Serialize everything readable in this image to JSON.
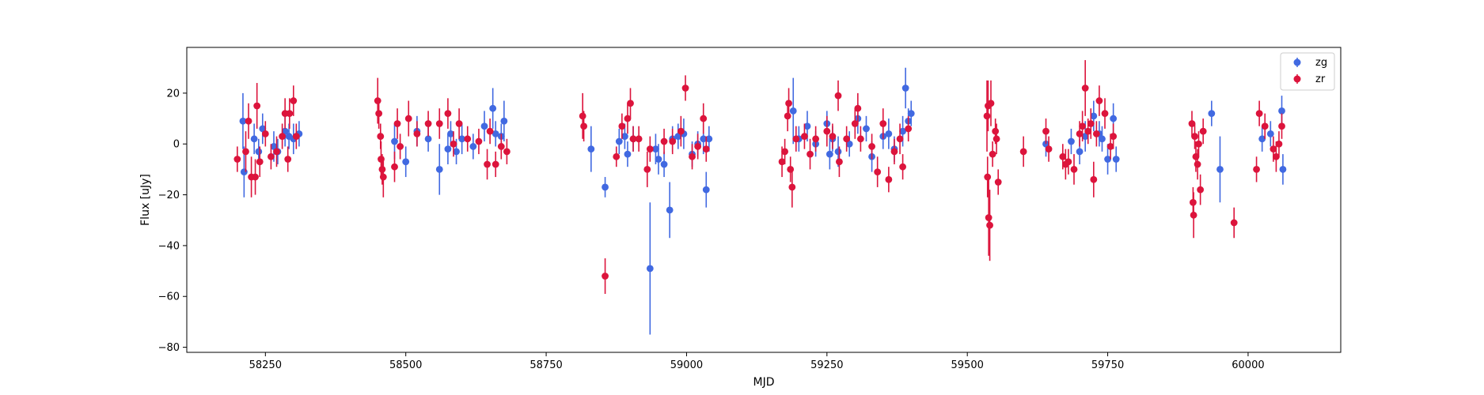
{
  "chart_data": {
    "type": "scatter",
    "xlabel": "MJD",
    "ylabel": "Flux [uJy]",
    "xlim": [
      58110,
      60165
    ],
    "ylim": [
      -82,
      38
    ],
    "xticks": [
      58250,
      58500,
      58750,
      59000,
      59250,
      59500,
      59750,
      60000
    ],
    "yticks": [
      20,
      0,
      -20,
      -40,
      -60,
      -80
    ],
    "legend_placement": "top-right",
    "grid": false,
    "series": [
      {
        "name": "zg",
        "color": "#4169e1",
        "points": [
          [
            58210,
            9,
            11
          ],
          [
            58212,
            -11,
            10
          ],
          [
            58230,
            2,
            6
          ],
          [
            58238,
            -3,
            5
          ],
          [
            58245,
            6,
            6
          ],
          [
            58265,
            -1,
            6
          ],
          [
            58272,
            -3,
            5
          ],
          [
            58285,
            5,
            6
          ],
          [
            58292,
            3,
            5
          ],
          [
            58300,
            2,
            6
          ],
          [
            58310,
            4,
            5
          ],
          [
            58480,
            1,
            7
          ],
          [
            58500,
            -7,
            6
          ],
          [
            58520,
            5,
            6
          ],
          [
            58540,
            2,
            5
          ],
          [
            58560,
            -10,
            10
          ],
          [
            58575,
            -2,
            6
          ],
          [
            58580,
            4,
            5
          ],
          [
            58590,
            -3,
            5
          ],
          [
            58600,
            2,
            6
          ],
          [
            58620,
            -1,
            5
          ],
          [
            58640,
            7,
            6
          ],
          [
            58655,
            14,
            8
          ],
          [
            58660,
            4,
            5
          ],
          [
            58670,
            3,
            5
          ],
          [
            58675,
            9,
            8
          ],
          [
            58830,
            -2,
            9
          ],
          [
            58855,
            -17,
            4
          ],
          [
            58880,
            1,
            5
          ],
          [
            58890,
            3,
            5
          ],
          [
            58895,
            -4,
            5
          ],
          [
            58905,
            2,
            5
          ],
          [
            58935,
            -49,
            26
          ],
          [
            58945,
            -2,
            6
          ],
          [
            58950,
            -6,
            6
          ],
          [
            58960,
            -8,
            5
          ],
          [
            58970,
            -26,
            11
          ],
          [
            58975,
            2,
            5
          ],
          [
            58985,
            3,
            5
          ],
          [
            58995,
            4,
            6
          ],
          [
            59010,
            -4,
            5
          ],
          [
            59020,
            0,
            5
          ],
          [
            59030,
            2,
            6
          ],
          [
            59035,
            -18,
            7
          ],
          [
            59040,
            2,
            5
          ],
          [
            59190,
            13,
            13
          ],
          [
            59200,
            2,
            5
          ],
          [
            59215,
            7,
            6
          ],
          [
            59230,
            0,
            5
          ],
          [
            59250,
            8,
            5
          ],
          [
            59255,
            -4,
            6
          ],
          [
            59260,
            2,
            5
          ],
          [
            59270,
            -3,
            6
          ],
          [
            59290,
            0,
            5
          ],
          [
            59305,
            10,
            6
          ],
          [
            59320,
            6,
            5
          ],
          [
            59330,
            -5,
            6
          ],
          [
            59350,
            3,
            5
          ],
          [
            59360,
            4,
            6
          ],
          [
            59370,
            -2,
            5
          ],
          [
            59385,
            5,
            6
          ],
          [
            59390,
            22,
            8
          ],
          [
            59395,
            9,
            5
          ],
          [
            59400,
            12,
            5
          ],
          [
            59640,
            0,
            5
          ],
          [
            59685,
            1,
            5
          ],
          [
            59700,
            -3,
            5
          ],
          [
            59710,
            3,
            6
          ],
          [
            59725,
            11,
            6
          ],
          [
            59735,
            4,
            5
          ],
          [
            59740,
            2,
            5
          ],
          [
            59750,
            -6,
            6
          ],
          [
            59760,
            10,
            6
          ],
          [
            59765,
            -6,
            5
          ],
          [
            59935,
            12,
            5
          ],
          [
            59950,
            -10,
            13
          ],
          [
            60025,
            2,
            5
          ],
          [
            60040,
            4,
            5
          ],
          [
            60060,
            13,
            6
          ],
          [
            60062,
            -10,
            6
          ]
        ]
      },
      {
        "name": "zr",
        "color": "#dc143c",
        "points": [
          [
            58200,
            -6,
            5
          ],
          [
            58215,
            -3,
            8
          ],
          [
            58220,
            9,
            7
          ],
          [
            58225,
            -13,
            8
          ],
          [
            58232,
            -13,
            7
          ],
          [
            58235,
            15,
            9
          ],
          [
            58240,
            -7,
            6
          ],
          [
            58250,
            4,
            5
          ],
          [
            58260,
            -5,
            5
          ],
          [
            58270,
            -3,
            6
          ],
          [
            58280,
            3,
            5
          ],
          [
            58285,
            12,
            6
          ],
          [
            58290,
            -6,
            5
          ],
          [
            58293,
            12,
            6
          ],
          [
            58300,
            17,
            6
          ],
          [
            58305,
            3,
            5
          ],
          [
            58450,
            17,
            9
          ],
          [
            58452,
            12,
            6
          ],
          [
            58455,
            3,
            5
          ],
          [
            58456,
            -6,
            7
          ],
          [
            58458,
            -10,
            6
          ],
          [
            58460,
            -13,
            8
          ],
          [
            58480,
            -9,
            6
          ],
          [
            58485,
            8,
            6
          ],
          [
            58490,
            -1,
            5
          ],
          [
            58505,
            10,
            7
          ],
          [
            58520,
            4,
            5
          ],
          [
            58540,
            8,
            5
          ],
          [
            58560,
            8,
            6
          ],
          [
            58575,
            12,
            6
          ],
          [
            58585,
            0,
            5
          ],
          [
            58595,
            8,
            6
          ],
          [
            58610,
            2,
            5
          ],
          [
            58630,
            1,
            5
          ],
          [
            58645,
            -8,
            6
          ],
          [
            58650,
            5,
            5
          ],
          [
            58660,
            -8,
            5
          ],
          [
            58670,
            -1,
            5
          ],
          [
            58680,
            -3,
            5
          ],
          [
            58815,
            11,
            9
          ],
          [
            58817,
            7,
            6
          ],
          [
            58855,
            -52,
            7
          ],
          [
            58875,
            -5,
            4
          ],
          [
            58885,
            7,
            5
          ],
          [
            58895,
            10,
            6
          ],
          [
            58900,
            16,
            6
          ],
          [
            58905,
            2,
            5
          ],
          [
            58915,
            2,
            5
          ],
          [
            58930,
            -10,
            7
          ],
          [
            58935,
            -2,
            5
          ],
          [
            58960,
            1,
            5
          ],
          [
            58975,
            1,
            5
          ],
          [
            58990,
            5,
            6
          ],
          [
            58998,
            22,
            5
          ],
          [
            59010,
            -5,
            5
          ],
          [
            59020,
            -1,
            5
          ],
          [
            59030,
            10,
            6
          ],
          [
            59035,
            -2,
            5
          ],
          [
            59170,
            -7,
            6
          ],
          [
            59175,
            -3,
            5
          ],
          [
            59180,
            11,
            6
          ],
          [
            59182,
            16,
            6
          ],
          [
            59185,
            -10,
            5
          ],
          [
            59188,
            -17,
            8
          ],
          [
            59195,
            2,
            5
          ],
          [
            59210,
            3,
            5
          ],
          [
            59220,
            -4,
            6
          ],
          [
            59230,
            2,
            5
          ],
          [
            59250,
            5,
            6
          ],
          [
            59260,
            3,
            5
          ],
          [
            59270,
            19,
            6
          ],
          [
            59272,
            -7,
            6
          ],
          [
            59285,
            2,
            5
          ],
          [
            59300,
            8,
            6
          ],
          [
            59305,
            14,
            6
          ],
          [
            59310,
            2,
            5
          ],
          [
            59330,
            -1,
            5
          ],
          [
            59340,
            -11,
            6
          ],
          [
            59350,
            8,
            6
          ],
          [
            59360,
            -14,
            5
          ],
          [
            59370,
            -3,
            5
          ],
          [
            59380,
            2,
            6
          ],
          [
            59385,
            -9,
            5
          ],
          [
            59395,
            6,
            5
          ],
          [
            59535,
            11,
            14
          ],
          [
            59536,
            -13,
            8
          ],
          [
            59537,
            15,
            10
          ],
          [
            59538,
            -29,
            15
          ],
          [
            59540,
            -32,
            14
          ],
          [
            59542,
            16,
            9
          ],
          [
            59545,
            -4,
            5
          ],
          [
            59550,
            5,
            5
          ],
          [
            59552,
            2,
            6
          ],
          [
            59555,
            -15,
            5
          ],
          [
            59600,
            -3,
            6
          ],
          [
            59640,
            5,
            5
          ],
          [
            59645,
            -2,
            5
          ],
          [
            59670,
            -5,
            5
          ],
          [
            59675,
            -8,
            6
          ],
          [
            59680,
            -7,
            5
          ],
          [
            59690,
            -10,
            6
          ],
          [
            59700,
            4,
            5
          ],
          [
            59705,
            7,
            6
          ],
          [
            59710,
            22,
            11
          ],
          [
            59715,
            5,
            5
          ],
          [
            59720,
            8,
            6
          ],
          [
            59725,
            -14,
            7
          ],
          [
            59730,
            4,
            5
          ],
          [
            59735,
            17,
            6
          ],
          [
            59745,
            12,
            6
          ],
          [
            59755,
            -1,
            5
          ],
          [
            59760,
            3,
            5
          ],
          [
            59900,
            8,
            5
          ],
          [
            59902,
            -23,
            6
          ],
          [
            59903,
            -28,
            9
          ],
          [
            59905,
            3,
            5
          ],
          [
            59907,
            -5,
            6
          ],
          [
            59910,
            -8,
            6
          ],
          [
            59912,
            0,
            5
          ],
          [
            59915,
            -18,
            6
          ],
          [
            59920,
            5,
            5
          ],
          [
            59975,
            -31,
            6
          ],
          [
            60015,
            -10,
            5
          ],
          [
            60020,
            12,
            5
          ],
          [
            60030,
            7,
            5
          ],
          [
            60045,
            -2,
            5
          ],
          [
            60050,
            -5,
            6
          ],
          [
            60055,
            0,
            5
          ],
          [
            60060,
            7,
            5
          ]
        ]
      }
    ]
  }
}
